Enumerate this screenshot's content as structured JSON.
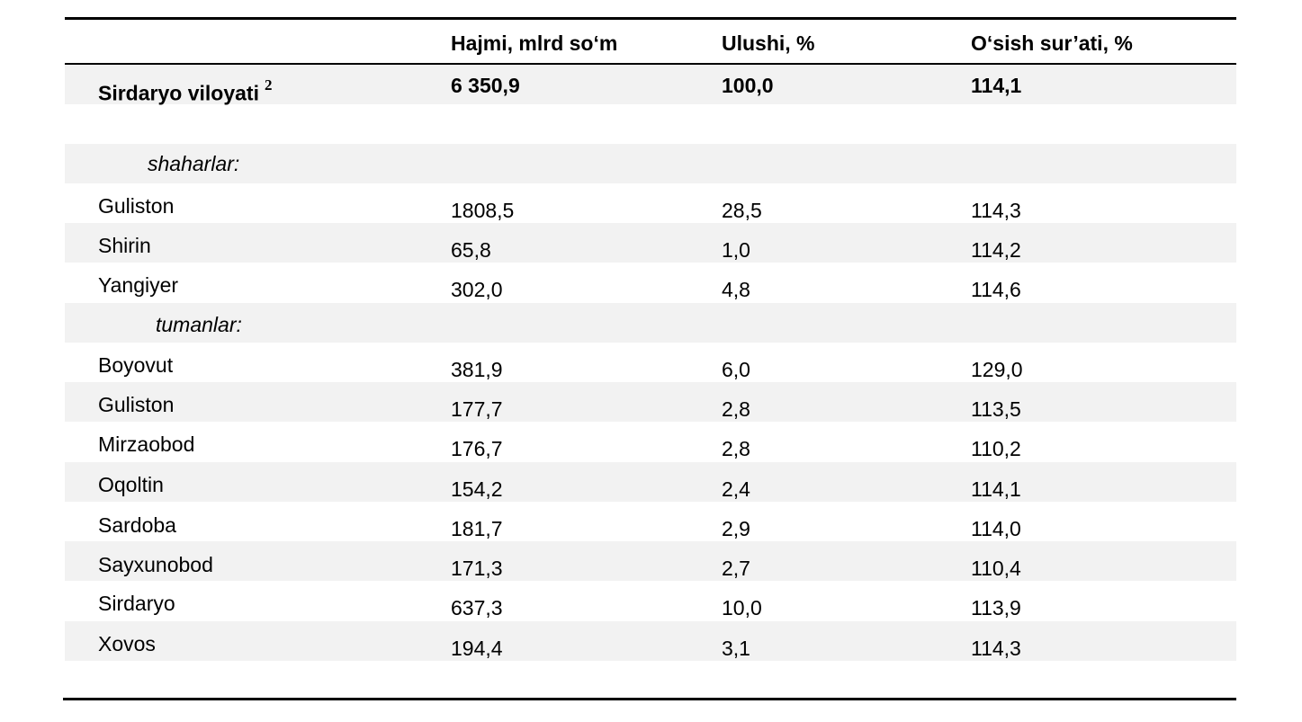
{
  "header": {
    "col_volume": "Hajmi, mlrd so‘m",
    "col_share": "Ulushi, %",
    "col_growth": "O‘sish sur’ati, %"
  },
  "total": {
    "name": "Sirdaryo viloyati",
    "footnote": "2",
    "volume": "6 350,9",
    "share": "100,0",
    "growth": "114,1"
  },
  "cities_heading": "shaharlar:",
  "cities": [
    {
      "name": "Guliston",
      "volume": "1808,5",
      "share": "28,5",
      "growth": "114,3"
    },
    {
      "name": "Shirin",
      "volume": "65,8",
      "share": "1,0",
      "growth": "114,2"
    },
    {
      "name": "Yangiyer",
      "volume": "302,0",
      "share": "4,8",
      "growth": "114,6"
    }
  ],
  "districts_heading": "tumanlar:",
  "districts": [
    {
      "name": "Boyovut",
      "volume": "381,9",
      "share": "6,0",
      "growth": "129,0"
    },
    {
      "name": "Guliston",
      "volume": "177,7",
      "share": "2,8",
      "growth": "113,5"
    },
    {
      "name": "Mirzaobod",
      "volume": "176,7",
      "share": "2,8",
      "growth": "110,2"
    },
    {
      "name": "Oqoltin",
      "volume": "154,2",
      "share": "2,4",
      "growth": "114,1"
    },
    {
      "name": "Sardoba",
      "volume": "181,7",
      "share": "2,9",
      "growth": "114,0"
    },
    {
      "name": "Sayxunobod",
      "volume": "171,3",
      "share": "2,7",
      "growth": "110,4"
    },
    {
      "name": "Sirdaryo",
      "volume": "637,3",
      "share": "10,0",
      "growth": "113,9"
    },
    {
      "name": "Xovos",
      "volume": "194,4",
      "share": "3,1",
      "growth": "114,3"
    }
  ],
  "colors": {
    "row_shade": "#f2f2f2",
    "rule": "#000000",
    "text": "#000000"
  }
}
